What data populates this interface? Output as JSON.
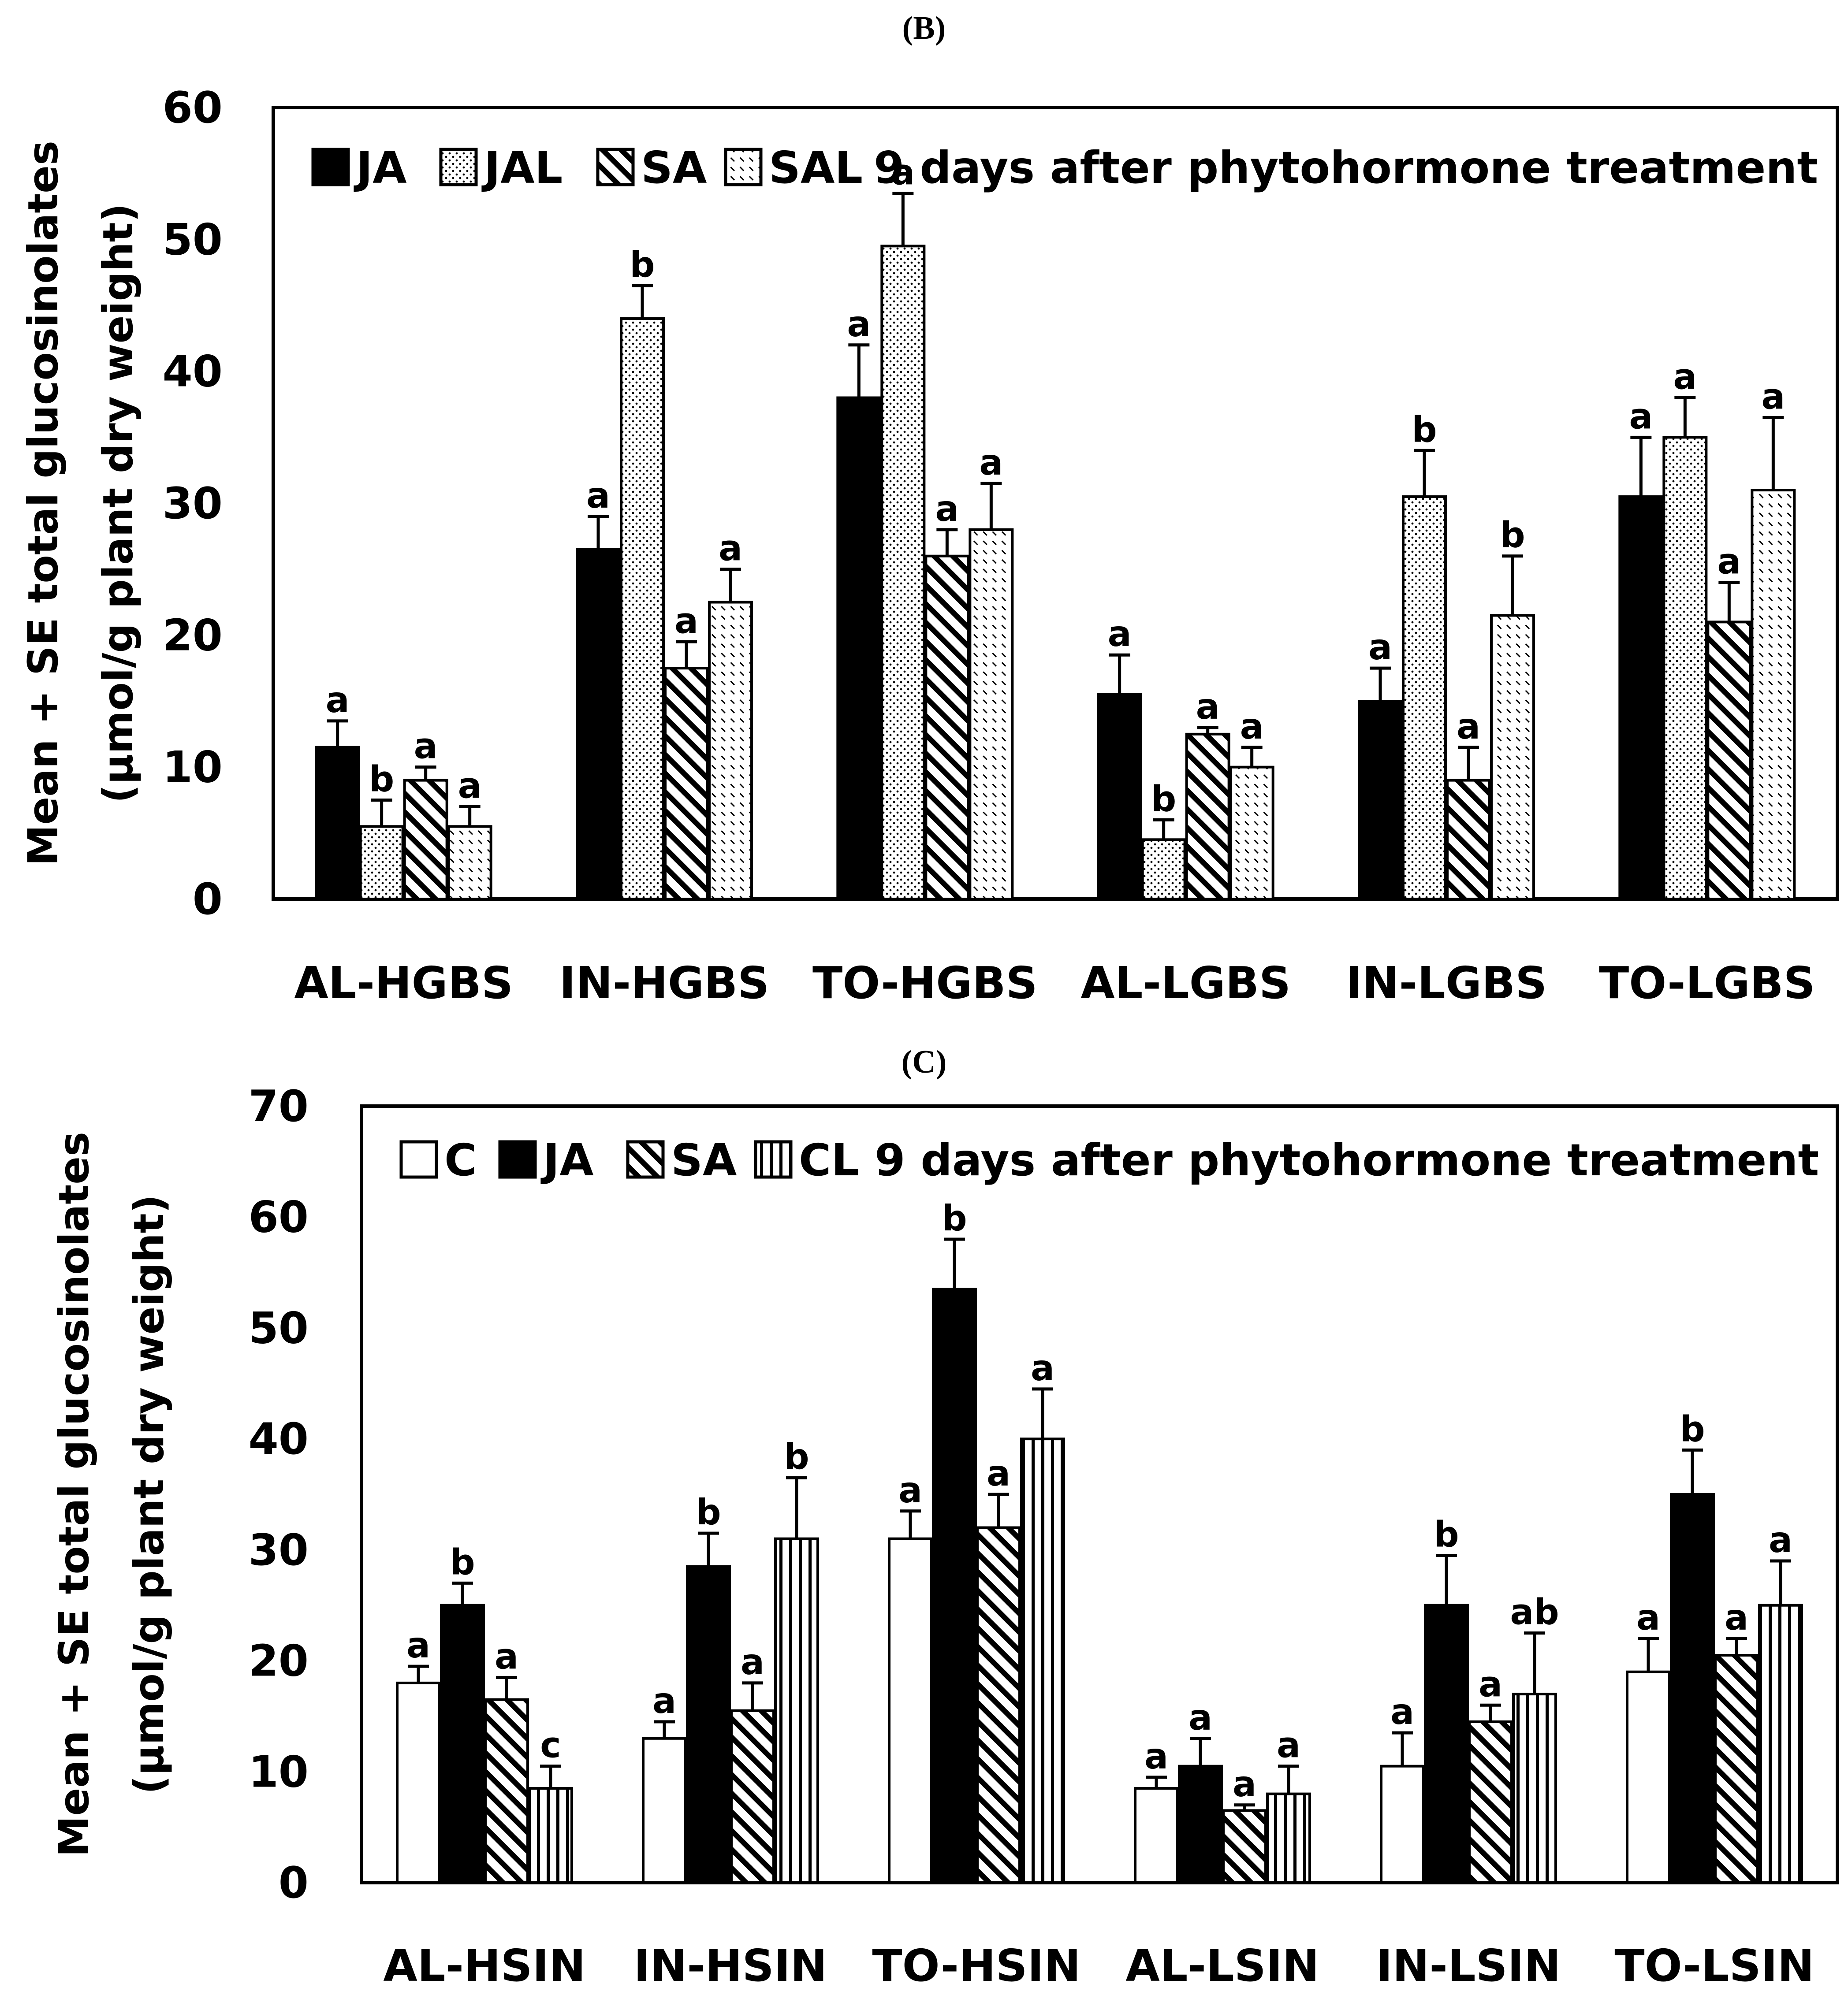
{
  "chart_data": [
    {
      "type": "bar",
      "panel_label": "(B)",
      "ylabel_lines": [
        "Mean + SE total glucosinolates",
        "(µmol/g  plant dry weight)"
      ],
      "ylim": [
        0,
        60
      ],
      "yticks": [
        0,
        10,
        20,
        30,
        40,
        50,
        60
      ],
      "categories": [
        "AL-HGBS",
        "IN-HGBS",
        "TO-HGBS",
        "AL-LGBS",
        "IN-LGBS",
        "TO-LGBS"
      ],
      "legend_note": "9 days after phytohormone treatment",
      "series": [
        {
          "name": "JA",
          "pattern": "solid",
          "values": [
            11.5,
            26.5,
            38,
            15.5,
            15,
            30.5
          ],
          "errors": [
            2,
            2.5,
            4,
            3,
            2.5,
            4.5
          ],
          "letters": [
            "a",
            "a",
            "a",
            "a",
            "a",
            "a"
          ]
        },
        {
          "name": "JAL",
          "pattern": "dots",
          "values": [
            5.5,
            44,
            49.5,
            4.5,
            30.5,
            35
          ],
          "errors": [
            2,
            2.5,
            4,
            1.5,
            3.5,
            3
          ],
          "letters": [
            "b",
            "b",
            "a",
            "b",
            "b",
            "a"
          ]
        },
        {
          "name": "SA",
          "pattern": "hatch",
          "values": [
            9,
            17.5,
            26,
            12.5,
            9,
            21
          ],
          "errors": [
            1,
            2,
            2,
            0.5,
            2.5,
            3
          ],
          "letters": [
            "a",
            "a",
            "a",
            "a",
            "a",
            "a"
          ]
        },
        {
          "name": "SAL",
          "pattern": "dash",
          "values": [
            5.5,
            22.5,
            28,
            10,
            21.5,
            31
          ],
          "errors": [
            1.5,
            2.5,
            3.5,
            1.5,
            4.5,
            5.5
          ],
          "letters": [
            "a",
            "a",
            "a",
            "a",
            "b",
            "a"
          ]
        }
      ]
    },
    {
      "type": "bar",
      "panel_label": "(C)",
      "ylabel_lines": [
        "Mean + SE total glucosinolates",
        "(µmol/g  plant dry weight)"
      ],
      "ylim": [
        0,
        70
      ],
      "yticks": [
        0,
        10,
        20,
        30,
        40,
        50,
        60,
        70
      ],
      "categories": [
        "AL-HSIN",
        "IN-HSIN",
        "TO-HSIN",
        "AL-LSIN",
        "IN-LSIN",
        "TO-LSIN"
      ],
      "legend_note": "9 days after phytohormone treatment",
      "series": [
        {
          "name": "C",
          "pattern": "empty",
          "values": [
            18,
            13,
            31,
            8.5,
            10.5,
            19
          ],
          "errors": [
            1.5,
            1.5,
            2.5,
            1,
            3,
            3
          ],
          "letters": [
            "a",
            "a",
            "a",
            "a",
            "a",
            "a"
          ]
        },
        {
          "name": "JA",
          "pattern": "solid",
          "values": [
            25,
            28.5,
            53.5,
            10.5,
            25,
            35
          ],
          "errors": [
            2,
            3,
            4.5,
            2.5,
            4.5,
            4
          ],
          "letters": [
            "b",
            "b",
            "b",
            "a",
            "b",
            "b"
          ]
        },
        {
          "name": "SA",
          "pattern": "hatch",
          "values": [
            16.5,
            15.5,
            32,
            6.5,
            14.5,
            20.5
          ],
          "errors": [
            2,
            2.5,
            3,
            0.5,
            1.5,
            1.5
          ],
          "letters": [
            "a",
            "a",
            "a",
            "a",
            "a",
            "a"
          ]
        },
        {
          "name": "CL",
          "pattern": "vstripe",
          "values": [
            8.5,
            31,
            40,
            8,
            17,
            25
          ],
          "errors": [
            2,
            5.5,
            4.5,
            2.5,
            5.5,
            4
          ],
          "letters": [
            "c",
            "b",
            "a",
            "a",
            "ab",
            "a"
          ]
        }
      ]
    }
  ]
}
